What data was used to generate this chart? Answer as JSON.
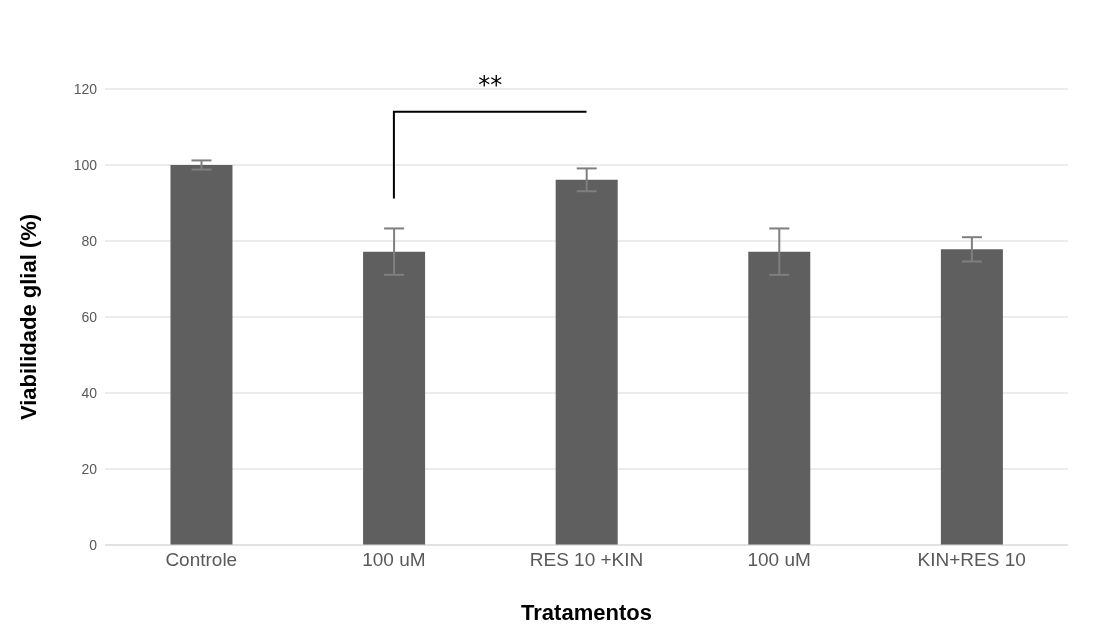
{
  "chart_data": {
    "type": "bar",
    "xlabel": "Tratamentos",
    "ylabel": "Viabilidade glial (%)",
    "categories": [
      "Controle",
      "100 uM",
      "RES 10 +KIN",
      "100 uM",
      "KIN+RES 10"
    ],
    "values": [
      100,
      77.2,
      96.1,
      77.2,
      77.8
    ],
    "errors": [
      1.2,
      6.1,
      3,
      6.1,
      3.2
    ],
    "color": "#5f5f5f",
    "ylim": [
      0,
      120
    ],
    "yticks": [
      0,
      20,
      40,
      60,
      80,
      100,
      120
    ],
    "grid": "y",
    "annotations": [
      "**"
    ]
  }
}
